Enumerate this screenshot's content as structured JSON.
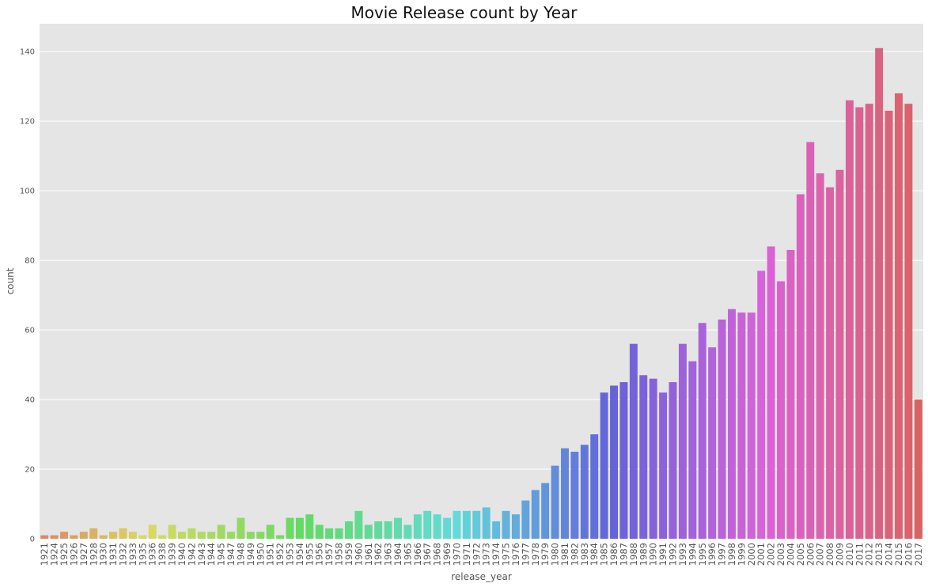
{
  "chart_data": {
    "type": "bar",
    "title": "Movie Release count by Year",
    "xlabel": "release_year",
    "ylabel": "count",
    "ylim": [
      0,
      148
    ],
    "yticks": [
      0,
      20,
      40,
      60,
      80,
      100,
      120,
      140
    ],
    "grid": true,
    "background": "#e5e5e5",
    "gridColor": "#ffffff",
    "palette": "hue gradient (husl) across categories",
    "categories": [
      "1921",
      "1924",
      "1925",
      "1926",
      "1927",
      "1928",
      "1930",
      "1931",
      "1932",
      "1933",
      "1935",
      "1936",
      "1938",
      "1939",
      "1940",
      "1942",
      "1943",
      "1944",
      "1945",
      "1947",
      "1948",
      "1949",
      "1950",
      "1951",
      "1952",
      "1953",
      "1954",
      "1955",
      "1956",
      "1957",
      "1958",
      "1959",
      "1960",
      "1961",
      "1962",
      "1963",
      "1964",
      "1965",
      "1966",
      "1967",
      "1968",
      "1969",
      "1970",
      "1971",
      "1972",
      "1973",
      "1974",
      "1975",
      "1976",
      "1977",
      "1978",
      "1979",
      "1980",
      "1981",
      "1982",
      "1983",
      "1984",
      "1985",
      "1986",
      "1987",
      "1988",
      "1989",
      "1990",
      "1991",
      "1992",
      "1993",
      "1994",
      "1995",
      "1996",
      "1997",
      "1998",
      "1999",
      "2000",
      "2001",
      "2002",
      "2003",
      "2004",
      "2005",
      "2006",
      "2007",
      "2008",
      "2009",
      "2010",
      "2011",
      "2012",
      "2013",
      "2014",
      "2015",
      "2016",
      "2017"
    ],
    "values": [
      1,
      1,
      2,
      1,
      2,
      3,
      1,
      2,
      3,
      2,
      1,
      4,
      1,
      4,
      2,
      3,
      2,
      2,
      4,
      2,
      6,
      2,
      2,
      4,
      1,
      6,
      6,
      7,
      4,
      3,
      3,
      5,
      8,
      4,
      5,
      5,
      6,
      4,
      7,
      8,
      7,
      6,
      8,
      8,
      8,
      9,
      5,
      8,
      7,
      11,
      14,
      16,
      21,
      26,
      25,
      27,
      30,
      42,
      44,
      45,
      56,
      47,
      46,
      42,
      45,
      56,
      51,
      62,
      55,
      63,
      66,
      65,
      65,
      77,
      84,
      74,
      83,
      99,
      114,
      105,
      101,
      106,
      126,
      124,
      125,
      141,
      123,
      128,
      125,
      40
    ]
  }
}
